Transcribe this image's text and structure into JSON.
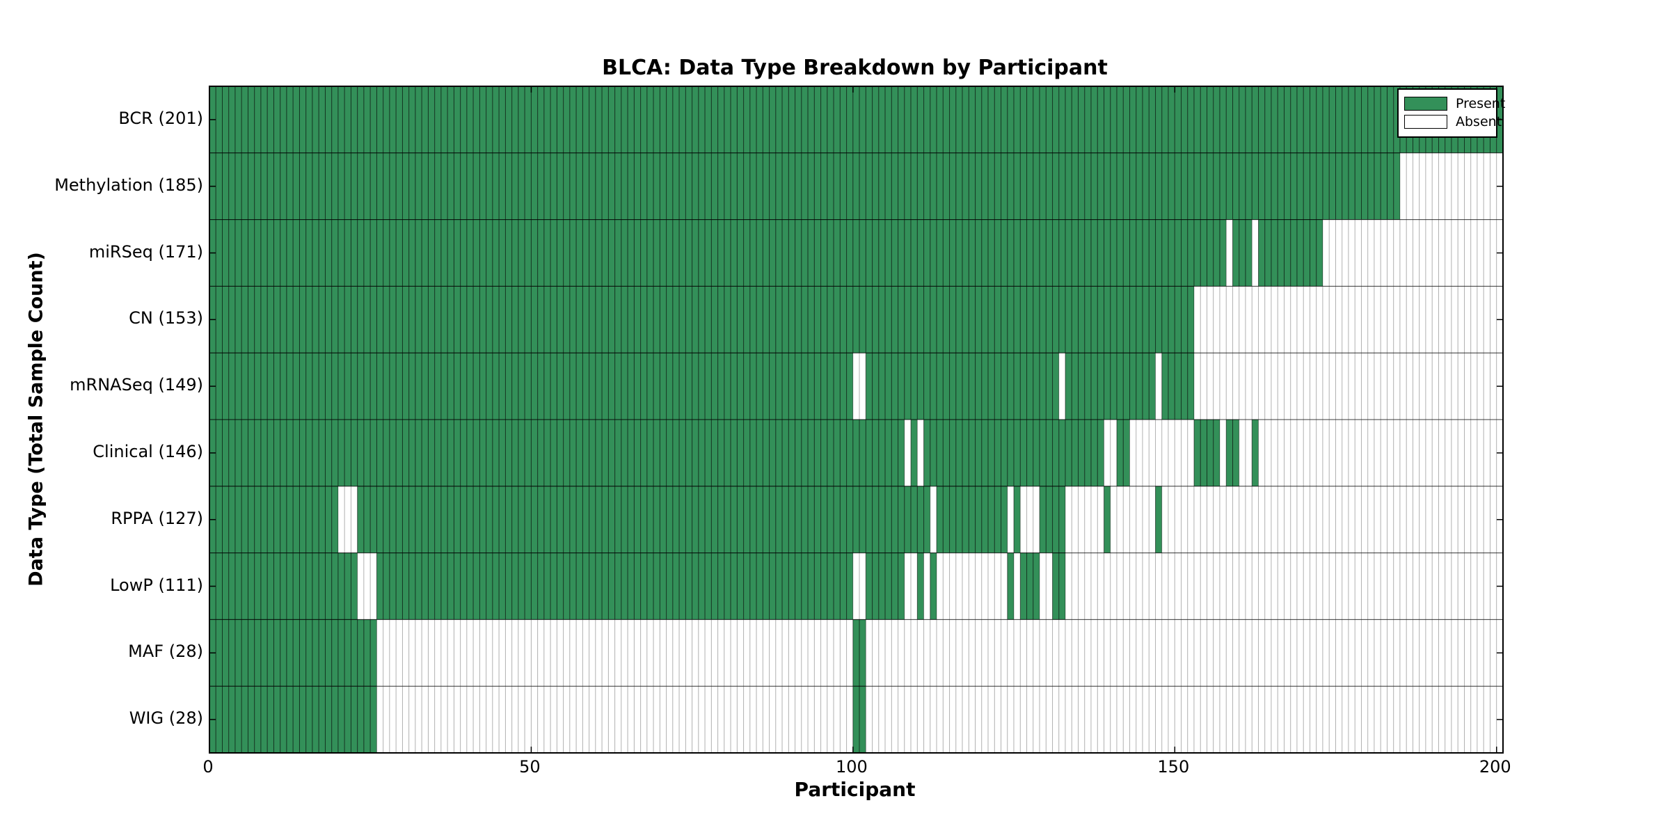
{
  "chart_data": {
    "type": "heatmap",
    "title": "BLCA: Data Type Breakdown by Participant",
    "xlabel": "Participant",
    "ylabel": "Data Type (Total Sample Count)",
    "n_participants": 201,
    "x_ticks": [
      0,
      50,
      100,
      150,
      200
    ],
    "grid": "cell-borders",
    "colors": {
      "present": "#339059",
      "absent": "#ffffff",
      "present_cell_border": "rgba(0,0,0,0.50)",
      "absent_cell_border": "rgba(0,0,0,0.22)",
      "row_separator": "rgba(0,0,0,0.65)",
      "plot_border": "#000000"
    },
    "legend": {
      "position": "top-right",
      "entries": [
        {
          "label": "Present",
          "color": "#339059"
        },
        {
          "label": "Absent",
          "color": "#ffffff"
        }
      ]
    },
    "rows": [
      {
        "label": "BCR (201)",
        "name": "BCR",
        "count": 201,
        "present_runs": [
          [
            0,
            201
          ]
        ]
      },
      {
        "label": "Methylation (185)",
        "name": "Methylation",
        "count": 185,
        "present_runs": [
          [
            0,
            185
          ]
        ]
      },
      {
        "label": "miRSeq (171)",
        "name": "miRSeq",
        "count": 171,
        "present_runs": [
          [
            0,
            158
          ],
          [
            159,
            162
          ],
          [
            163,
            173
          ]
        ]
      },
      {
        "label": "CN (153)",
        "name": "CN",
        "count": 153,
        "present_runs": [
          [
            0,
            153
          ]
        ]
      },
      {
        "label": "mRNASeq (149)",
        "name": "mRNASeq",
        "count": 149,
        "present_runs": [
          [
            0,
            100
          ],
          [
            102,
            132
          ],
          [
            133,
            147
          ],
          [
            148,
            153
          ]
        ]
      },
      {
        "label": "Clinical (146)",
        "name": "Clinical",
        "count": 146,
        "present_runs": [
          [
            0,
            108
          ],
          [
            109,
            110
          ],
          [
            111,
            139
          ],
          [
            141,
            143
          ],
          [
            153,
            157
          ],
          [
            158,
            160
          ],
          [
            162,
            163
          ]
        ]
      },
      {
        "label": "RPPA (127)",
        "name": "RPPA",
        "count": 127,
        "present_runs": [
          [
            0,
            20
          ],
          [
            23,
            112
          ],
          [
            113,
            124
          ],
          [
            125,
            126
          ],
          [
            129,
            133
          ],
          [
            139,
            140
          ],
          [
            147,
            148
          ]
        ]
      },
      {
        "label": "LowP (111)",
        "name": "LowP",
        "count": 111,
        "present_runs": [
          [
            0,
            23
          ],
          [
            26,
            100
          ],
          [
            102,
            108
          ],
          [
            110,
            111
          ],
          [
            112,
            113
          ],
          [
            124,
            125
          ],
          [
            126,
            129
          ],
          [
            131,
            133
          ]
        ]
      },
      {
        "label": "MAF (28)",
        "name": "MAF",
        "count": 28,
        "present_runs": [
          [
            0,
            26
          ],
          [
            100,
            102
          ]
        ]
      },
      {
        "label": "WIG (28)",
        "name": "WIG",
        "count": 28,
        "present_runs": [
          [
            0,
            26
          ],
          [
            100,
            102
          ]
        ]
      }
    ]
  }
}
